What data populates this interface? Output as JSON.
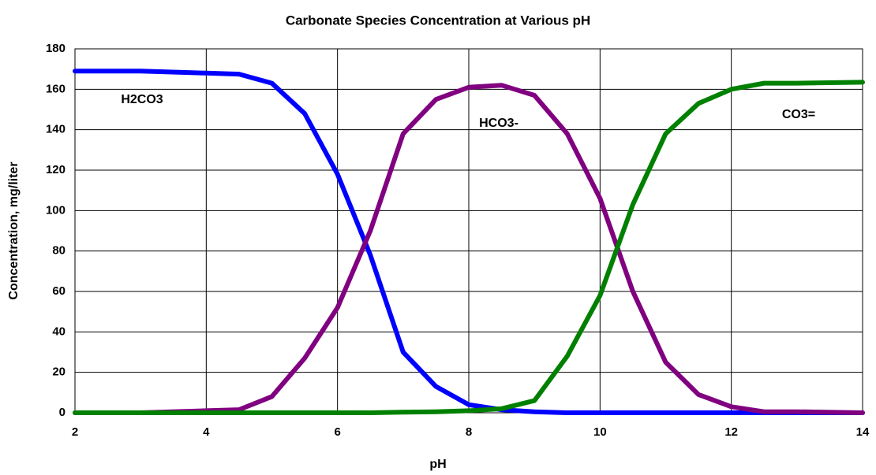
{
  "chart_data": {
    "type": "line",
    "title": "Carbonate Species Concentration at Various pH",
    "x_label": "pH",
    "y_label": "Concentration, mg/liter",
    "x": [
      2,
      3,
      4,
      4.5,
      5,
      5.5,
      6,
      6.5,
      7,
      7.5,
      8,
      8.5,
      9,
      9.5,
      10,
      10.5,
      11,
      11.5,
      12,
      12.5,
      13,
      14
    ],
    "series": [
      {
        "name": "H2CO3",
        "color": "#0000ff",
        "values": [
          169,
          169,
          168,
          167.5,
          163,
          148,
          118,
          78,
          30,
          13,
          4,
          1.5,
          0.5,
          0,
          0,
          0,
          0,
          0,
          0,
          0,
          0,
          0
        ]
      },
      {
        "name": "HCO3-",
        "color": "#800080",
        "values": [
          0,
          0,
          1,
          1.5,
          8,
          27,
          52,
          90,
          138,
          155,
          161,
          162,
          157,
          138,
          106,
          60,
          25,
          9,
          3,
          0.5,
          0.5,
          0
        ]
      },
      {
        "name": "CO3=",
        "color": "#008000",
        "values": [
          0,
          0,
          0,
          0,
          0,
          0,
          0,
          0,
          0.3,
          0.5,
          1,
          2,
          6,
          28,
          58,
          103,
          138,
          153,
          160,
          163,
          163,
          163.5
        ]
      }
    ],
    "xlim": [
      2,
      14
    ],
    "xticks": [
      2,
      4,
      6,
      8,
      10,
      12,
      14
    ],
    "ylim": [
      0,
      180
    ],
    "yticks": [
      0,
      20,
      40,
      60,
      80,
      100,
      120,
      140,
      160,
      180
    ],
    "grid": true
  }
}
